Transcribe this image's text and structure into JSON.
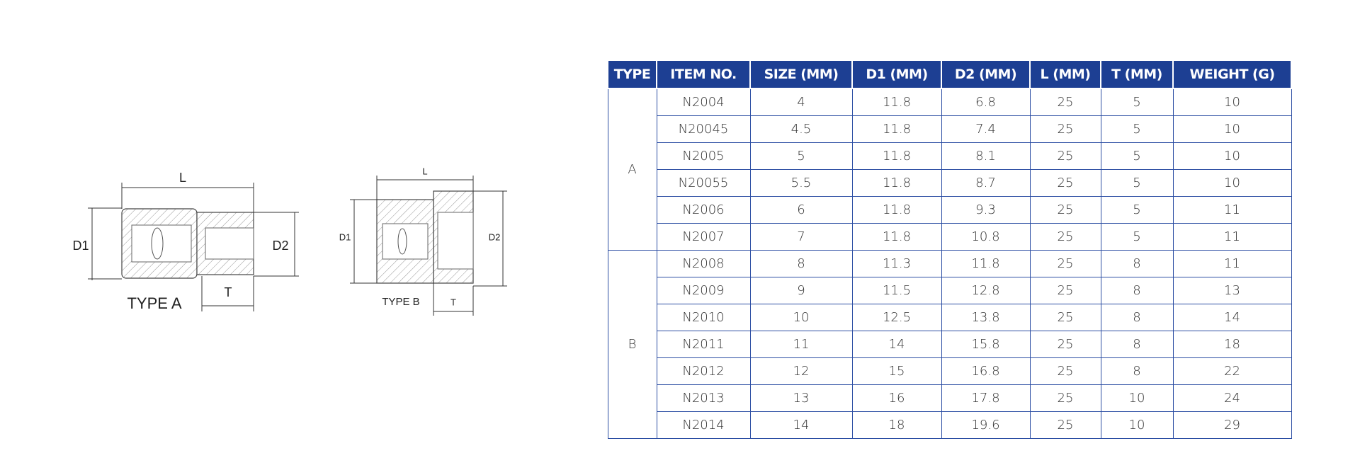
{
  "diagrams": [
    {
      "caption": "TYPE A",
      "length": "L",
      "outer_diameter": "D1",
      "drive_diameter": "D2",
      "drive_length": "T"
    },
    {
      "caption": "TYPE B",
      "length": "L",
      "outer_diameter": "D1",
      "drive_diameter": "D2",
      "drive_length": "T"
    }
  ],
  "table": {
    "columns": [
      "TYPE",
      "ITEM NO.",
      "SIZE (MM)",
      "D1 (MM)",
      "D2 (MM)",
      "L (MM)",
      "T (MM)",
      "WEIGHT (G)"
    ],
    "groups": [
      {
        "type": "A",
        "rows": [
          [
            "N2004",
            "4",
            "11.8",
            "6.8",
            "25",
            "5",
            "10"
          ],
          [
            "N20045",
            "4.5",
            "11.8",
            "7.4",
            "25",
            "5",
            "10"
          ],
          [
            "N2005",
            "5",
            "11.8",
            "8.1",
            "25",
            "5",
            "10"
          ],
          [
            "N20055",
            "5.5",
            "11.8",
            "8.7",
            "25",
            "5",
            "10"
          ],
          [
            "N2006",
            "6",
            "11.8",
            "9.3",
            "25",
            "5",
            "11"
          ],
          [
            "N2007",
            "7",
            "11.8",
            "10.8",
            "25",
            "5",
            "11"
          ]
        ]
      },
      {
        "type": "B",
        "rows": [
          [
            "N2008",
            "8",
            "11.3",
            "11.8",
            "25",
            "8",
            "11"
          ],
          [
            "N2009",
            "9",
            "11.5",
            "12.8",
            "25",
            "8",
            "13"
          ],
          [
            "N2010",
            "10",
            "12.5",
            "13.8",
            "25",
            "8",
            "14"
          ],
          [
            "N2011",
            "11",
            "14",
            "15.8",
            "25",
            "8",
            "18"
          ],
          [
            "N2012",
            "12",
            "15",
            "16.8",
            "25",
            "8",
            "22"
          ],
          [
            "N2013",
            "13",
            "16",
            "17.8",
            "25",
            "10",
            "24"
          ],
          [
            "N2014",
            "14",
            "18",
            "19.6",
            "25",
            "10",
            "29"
          ]
        ]
      }
    ]
  }
}
